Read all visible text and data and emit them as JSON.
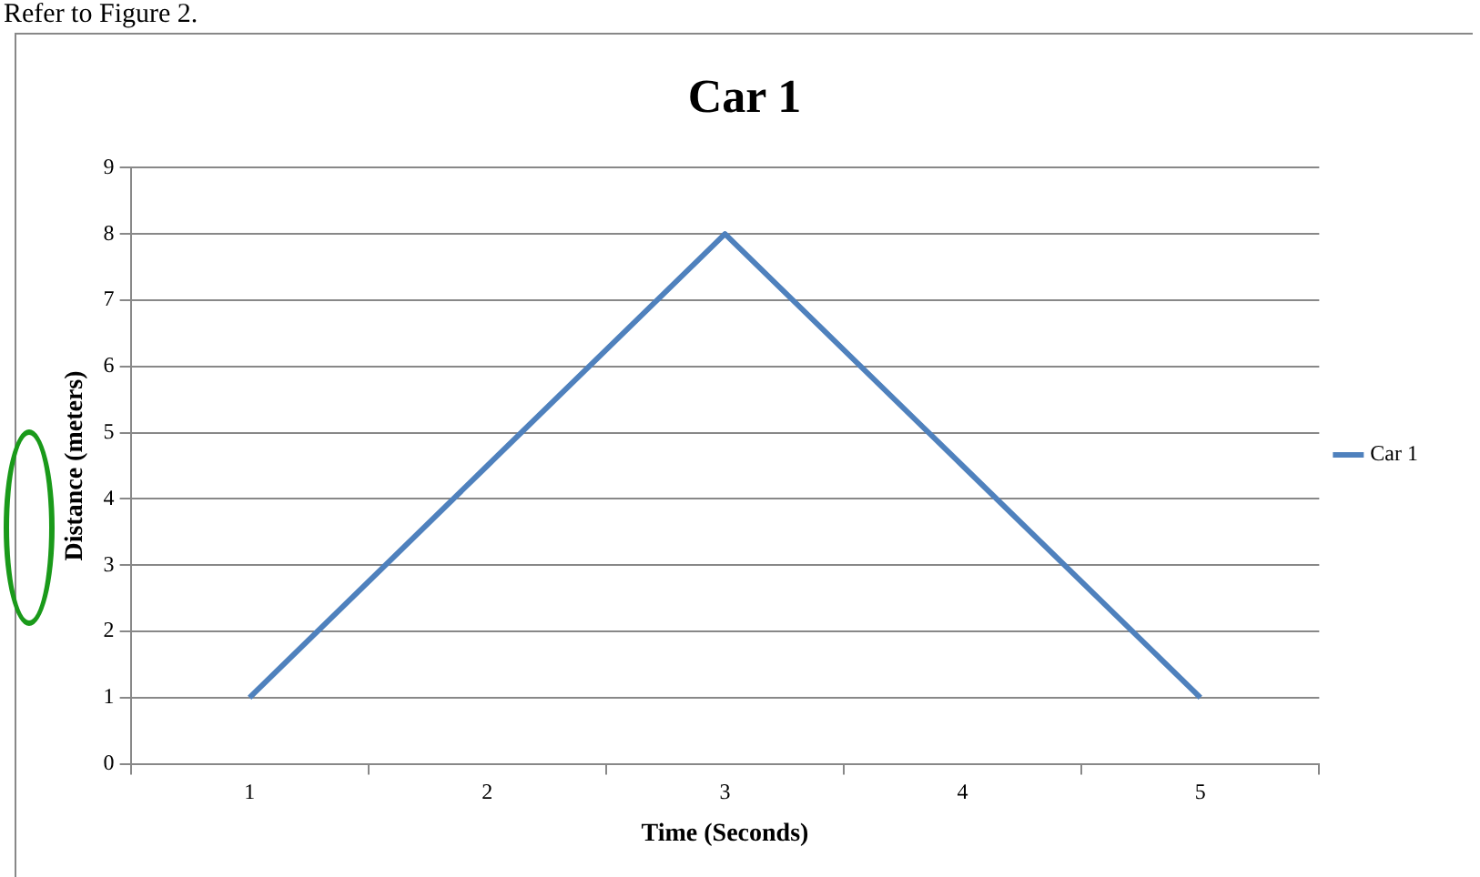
{
  "chart_data": {
    "type": "line",
    "title": "Car 1",
    "xlabel": "Time (Seconds)",
    "ylabel": "Distance (meters)",
    "annotations": [
      "Refer to Figure 2."
    ],
    "categories": [
      "1",
      "2",
      "3",
      "4",
      "5"
    ],
    "series": [
      {
        "name": "Car 1",
        "color": "#4f81bd",
        "values": [
          1,
          4.5,
          8,
          4.5,
          1
        ]
      }
    ],
    "ylim": [
      0,
      9
    ],
    "yticks": [
      0,
      1,
      2,
      3,
      4,
      5,
      6,
      7,
      8,
      9
    ],
    "grid": "y",
    "legend": "right",
    "marker": "none",
    "line_style": "solid"
  }
}
